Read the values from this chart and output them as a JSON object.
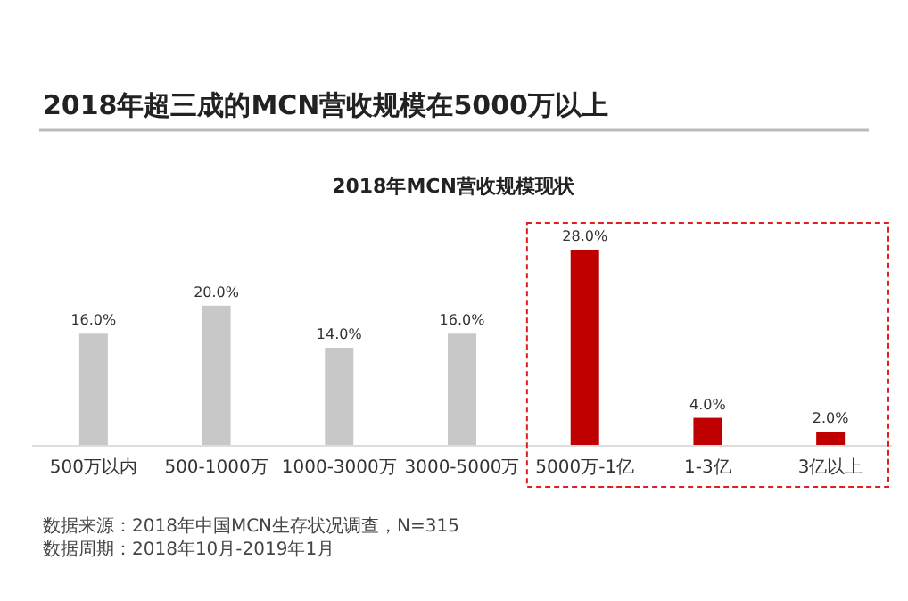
{
  "chart_data": {
    "type": "bar",
    "title": "2018年超三成的MCN营收规模在5000万以上",
    "subtitle": "2018年MCN营收规模现状",
    "categories": [
      "500万以内",
      "500-1000万",
      "1000-3000万",
      "3000-5000万",
      "5000万-1亿",
      "1-3亿",
      "3亿以上"
    ],
    "values": [
      16,
      20,
      14,
      16,
      28,
      4,
      2
    ],
    "value_labels": [
      "16.0%",
      "20.0%",
      "14.0%",
      "16.0%",
      "28.0%",
      "4.0%",
      "2.0%"
    ],
    "colors": [
      "#c8c8c8",
      "#c8c8c8",
      "#c8c8c8",
      "#c8c8c8",
      "#c00000",
      "#c00000",
      "#c00000"
    ],
    "annotations": [
      "数据来源：2018年中国MCN生存状况调查，N=315",
      "数据周期：2018年10月-2019年1月"
    ]
  }
}
